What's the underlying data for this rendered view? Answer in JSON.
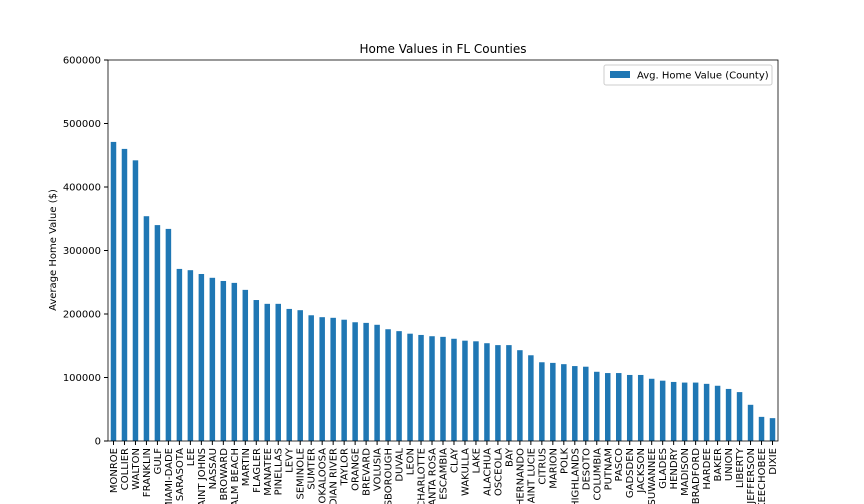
{
  "chart_data": {
    "type": "bar",
    "title": "Home Values in FL Counties",
    "ylabel": "Average Home Value ($)",
    "categories": [
      "MONROE",
      "COLLIER",
      "WALTON",
      "FRANKLIN",
      "GULF",
      "MIAMI-DADE",
      "SARASOTA",
      "LEE",
      "SAINT JOHNS",
      "NASSAU",
      "BROWARD",
      "PALM BEACH",
      "MARTIN",
      "FLAGLER",
      "MANATEE",
      "PINELLAS",
      "LEVY",
      "SEMINOLE",
      "SUMTER",
      "OKALOOSA",
      "INDIAN RIVER",
      "TAYLOR",
      "ORANGE",
      "BREVARD",
      "VOLUSIA",
      "HILLSBOROUGH",
      "DUVAL",
      "LEON",
      "CHARLOTTE",
      "SANTA ROSA",
      "ESCAMBIA",
      "CLAY",
      "WAKULLA",
      "LAKE",
      "ALACHUA",
      "OSCEOLA",
      "BAY",
      "HERNANDO",
      "SAINT LUCIE",
      "CITRUS",
      "MARION",
      "POLK",
      "HIGHLANDS",
      "DESOTO",
      "COLUMBIA",
      "PUTNAM",
      "PASCO",
      "GADSDEN",
      "JACKSON",
      "SUWANNEE",
      "GLADES",
      "HENDRY",
      "MADISON",
      "BRADFORD",
      "HARDEE",
      "BAKER",
      "UNION",
      "LIBERTY",
      "JEFFERSON",
      "OKEECHOBEE",
      "DIXIE"
    ],
    "series": [
      {
        "name": "Avg. Home Value (County)",
        "color": "#1f77b4",
        "values": [
          471000,
          460000,
          442000,
          354000,
          340000,
          334000,
          271000,
          269000,
          263000,
          257000,
          252000,
          249000,
          238000,
          222000,
          216000,
          216000,
          208000,
          206000,
          198000,
          195000,
          194000,
          191000,
          187000,
          186000,
          183000,
          176000,
          173000,
          169000,
          167000,
          165000,
          164000,
          161000,
          158000,
          157000,
          154000,
          151000,
          151000,
          143000,
          135000,
          124000,
          123000,
          121000,
          118000,
          117000,
          109000,
          107000,
          107000,
          104000,
          104000,
          98000,
          95000,
          93000,
          92000,
          92000,
          90000,
          87000,
          82000,
          77000,
          57000,
          38000,
          36000
        ]
      }
    ],
    "ylim": [
      0,
      600000
    ],
    "yticks": [
      0,
      100000,
      200000,
      300000,
      400000,
      500000,
      600000
    ],
    "legend": "upper right"
  }
}
